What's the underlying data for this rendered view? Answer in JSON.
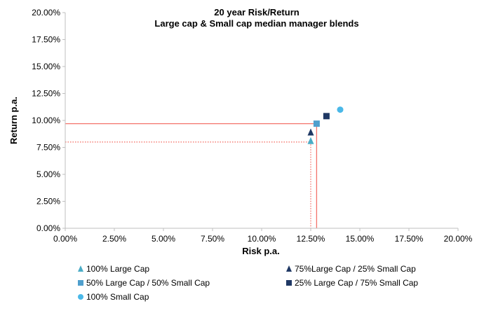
{
  "chart_data": {
    "type": "scatter",
    "title": [
      "20 year Risk/Return",
      "Large cap & Small cap median manager blends"
    ],
    "xlabel": "Risk p.a.",
    "ylabel": "Return p.a.",
    "xlim": [
      0,
      20
    ],
    "ylim": [
      0,
      20
    ],
    "x_ticks": [
      "0.00%",
      "2.50%",
      "5.00%",
      "7.50%",
      "10.00%",
      "12.50%",
      "15.00%",
      "17.50%",
      "20.00%"
    ],
    "y_ticks": [
      "0.00%",
      "2.50%",
      "5.00%",
      "7.50%",
      "10.00%",
      "12.50%",
      "15.00%",
      "17.50%",
      "20.00%"
    ],
    "grid": false,
    "legend_position": "bottom",
    "series": [
      {
        "name": "100% Large Cap",
        "marker": "triangle",
        "color": "#4bacc6",
        "x": 12.5,
        "y": 8.1
      },
      {
        "name": "75%Large Cap / 25% Small Cap",
        "marker": "triangle",
        "color": "#1f3864",
        "x": 12.5,
        "y": 8.9
      },
      {
        "name": "50% Large Cap / 50% Small Cap",
        "marker": "square",
        "color": "#4f9fcd",
        "x": 12.8,
        "y": 9.7
      },
      {
        "name": "25% Large Cap / 75% Small Cap",
        "marker": "square",
        "color": "#1f3864",
        "x": 13.3,
        "y": 10.4
      },
      {
        "name": "100% Small Cap",
        "marker": "circle",
        "color": "#4ab8e8",
        "x": 14.0,
        "y": 11.0
      }
    ],
    "reference_lines": [
      {
        "style": "solid",
        "color": "#f4736b",
        "x": 12.8,
        "y": 9.7
      },
      {
        "style": "dotted",
        "color": "#f4736b",
        "x": 12.5,
        "y": 8.0
      }
    ]
  }
}
